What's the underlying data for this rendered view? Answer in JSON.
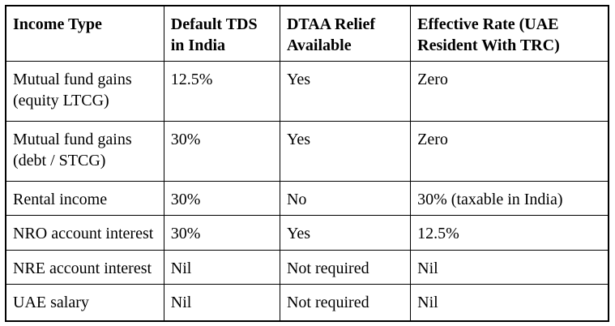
{
  "table": {
    "columns": [
      "Income Type",
      "Default TDS in India",
      "DTAA Relief Available",
      "Effective Rate (UAE Resident With TRC)"
    ],
    "rows": [
      [
        "Mutual fund gains (equity LTCG)",
        "12.5%",
        "Yes",
        "Zero"
      ],
      [
        "Mutual fund gains (debt / STCG)",
        "30%",
        "Yes",
        "Zero"
      ],
      [
        "Rental income",
        "30%",
        "No",
        "30% (taxable in India)"
      ],
      [
        "NRO account interest",
        "30%",
        "Yes",
        "12.5%"
      ],
      [
        "NRE account interest",
        "Nil",
        "Not required",
        "Nil"
      ],
      [
        "UAE salary",
        "Nil",
        "Not required",
        "Nil"
      ]
    ]
  }
}
